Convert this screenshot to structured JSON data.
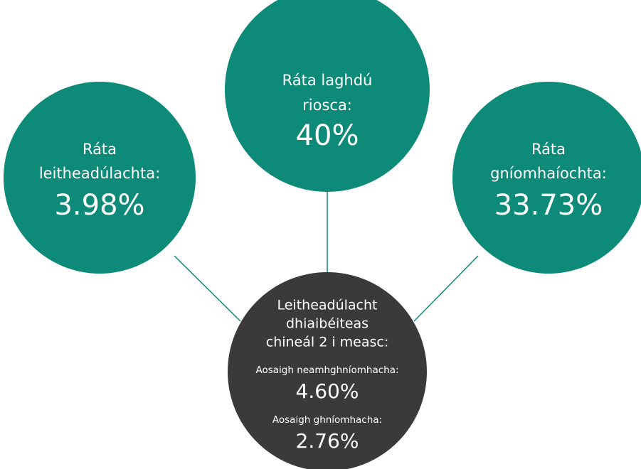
{
  "nodes": [
    {
      "label_lines": [
        "Ráta",
        "leitheadúlachta:"
      ],
      "value": "3.98%"
    },
    {
      "label_lines": [
        "Ráta laghdú",
        "riosca:"
      ],
      "value": "40%"
    },
    {
      "label_lines": [
        "Ráta",
        "gníomhaíochta:"
      ],
      "value": "33.73%"
    },
    {
      "label_lines": [
        "Leitheadúlacht",
        "dhiaibéiteas",
        "chineál 2 i measc:"
      ],
      "groups": [
        {
          "label": "Aosaigh neamhghníomhacha:",
          "value": "4.60%"
        },
        {
          "label": "Aosaigh ghníomhacha:",
          "value": "2.76%"
        }
      ]
    }
  ]
}
